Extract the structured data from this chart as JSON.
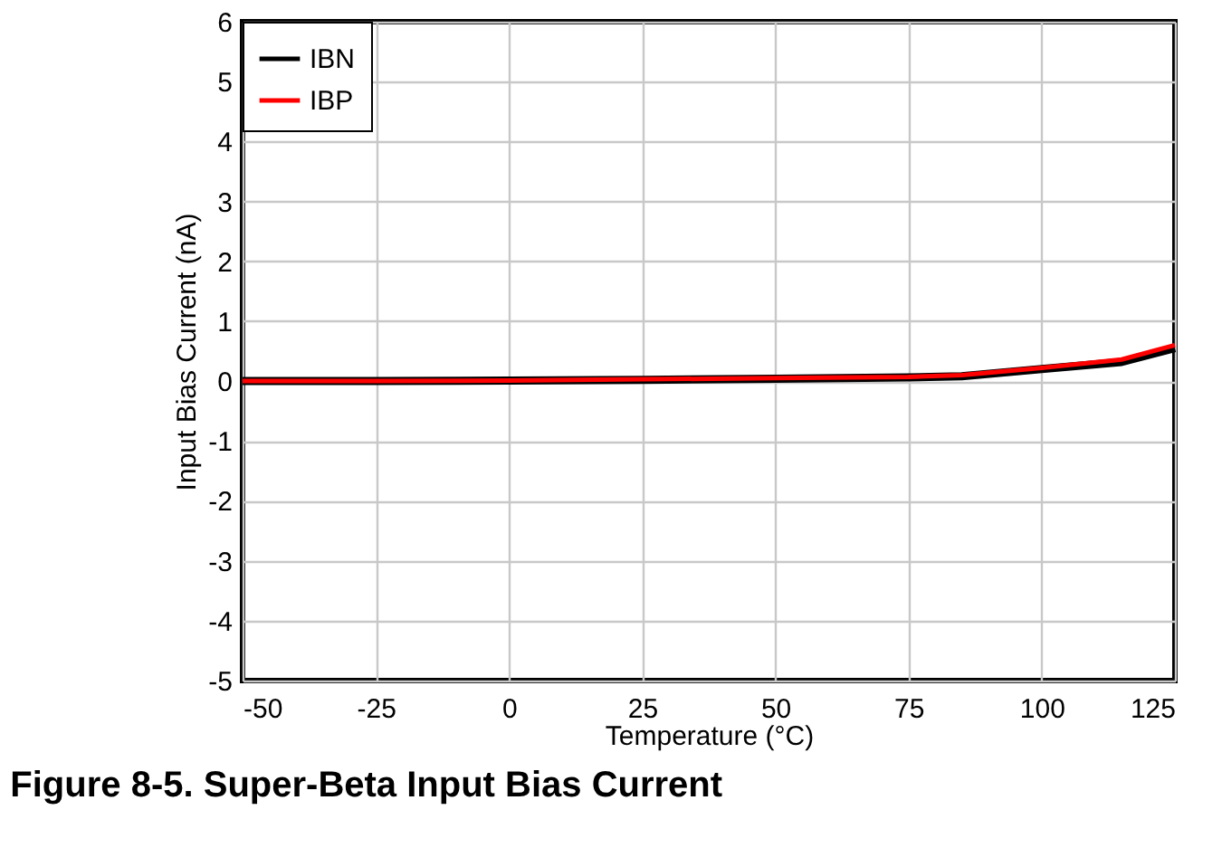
{
  "chart_data": {
    "type": "line",
    "title": "Figure 8-5. Super-Beta Input Bias Current",
    "xlabel": "Temperature (°C)",
    "ylabel": "Input Bias Current (nA)",
    "x": [
      -50,
      -25,
      0,
      25,
      50,
      75,
      85,
      100,
      115,
      125
    ],
    "series": [
      {
        "name": "IBN",
        "color": "#000000",
        "values": [
          0,
          0,
          0.01,
          0.02,
          0.04,
          0.06,
          0.08,
          0.2,
          0.32,
          0.55
        ]
      },
      {
        "name": "IBP",
        "color": "#ff0000",
        "values": [
          0,
          0,
          0.01,
          0.03,
          0.05,
          0.07,
          0.1,
          0.22,
          0.36,
          0.6
        ]
      }
    ],
    "xlim": [
      -50,
      125
    ],
    "xticks": [
      -50,
      -25,
      0,
      25,
      50,
      75,
      100,
      125
    ],
    "ylim": [
      -5,
      6
    ],
    "yticks": [
      -5,
      -4,
      -3,
      -2,
      -1,
      0,
      1,
      2,
      3,
      4,
      5,
      6
    ],
    "grid": true,
    "legend": "top left",
    "line_style": "solid",
    "marker": "none"
  }
}
